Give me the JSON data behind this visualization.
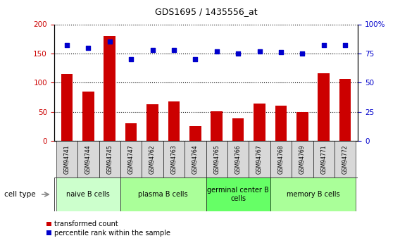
{
  "title": "GDS1695 / 1435556_at",
  "samples": [
    "GSM94741",
    "GSM94744",
    "GSM94745",
    "GSM94747",
    "GSM94762",
    "GSM94763",
    "GSM94764",
    "GSM94765",
    "GSM94766",
    "GSM94767",
    "GSM94768",
    "GSM94769",
    "GSM94771",
    "GSM94772"
  ],
  "transformed_count": [
    115,
    85,
    180,
    30,
    63,
    68,
    26,
    51,
    39,
    64,
    61,
    50,
    116,
    107
  ],
  "percentile_rank": [
    82,
    80,
    85,
    70,
    78,
    78,
    70,
    77,
    75,
    77,
    76,
    75,
    82,
    82
  ],
  "bar_color": "#cc0000",
  "dot_color": "#0000cc",
  "ylim_left": [
    0,
    200
  ],
  "ylim_right": [
    0,
    100
  ],
  "yticks_left": [
    0,
    50,
    100,
    150,
    200
  ],
  "yticks_right": [
    0,
    25,
    50,
    75,
    100
  ],
  "ytick_labels_right": [
    "0",
    "25",
    "50",
    "75",
    "100%"
  ],
  "cell_groups": [
    {
      "label": "naive B cells",
      "start": 0,
      "end": 3,
      "color": "#ccffcc"
    },
    {
      "label": "plasma B cells",
      "start": 3,
      "end": 7,
      "color": "#aaff99"
    },
    {
      "label": "germinal center B\ncells",
      "start": 7,
      "end": 10,
      "color": "#66ff66"
    },
    {
      "label": "memory B cells",
      "start": 10,
      "end": 14,
      "color": "#aaff99"
    }
  ],
  "left_color": "#cc0000",
  "right_color": "#0000cc",
  "tick_bg_color": "#d8d8d8",
  "cell_type_label": "cell type",
  "legend_items": [
    {
      "label": "transformed count",
      "color": "#cc0000"
    },
    {
      "label": "percentile rank within the sample",
      "color": "#0000cc"
    }
  ],
  "fig_width": 5.68,
  "fig_height": 3.45,
  "dpi": 100
}
